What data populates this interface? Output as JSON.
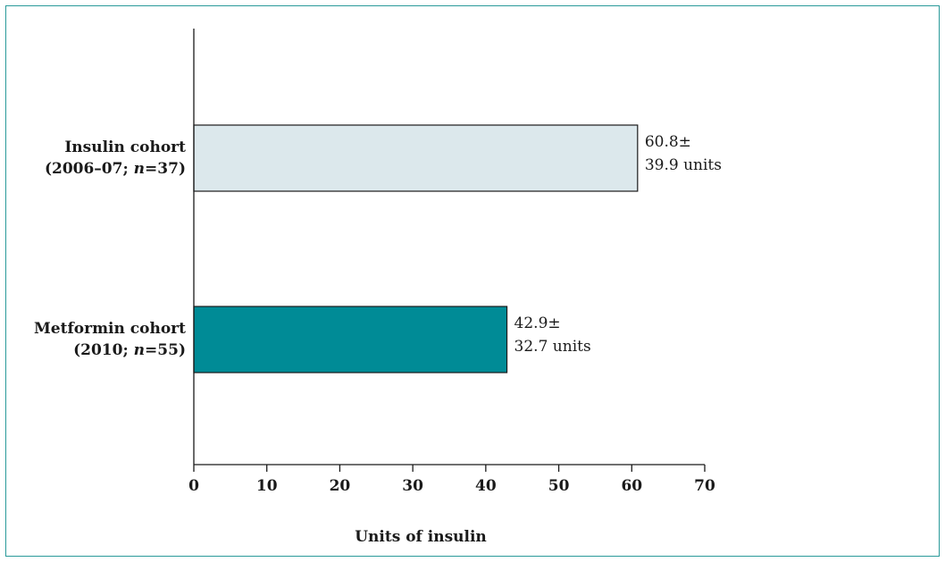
{
  "chart_data": {
    "type": "bar",
    "orientation": "horizontal",
    "categories": [
      {
        "line1": "Insulin cohort",
        "line2_pre": "(2006–07; ",
        "line2_n": "n",
        "line2_post": "=37)"
      },
      {
        "line1": "Metformin cohort",
        "line2_pre": "(2010; ",
        "line2_n": "n",
        "line2_post": "=55)"
      }
    ],
    "values": [
      60.8,
      42.9
    ],
    "data_labels": [
      {
        "line1": "60.8±",
        "line2": "39.9 units"
      },
      {
        "line1": "42.9±",
        "line2": "32.7 units"
      }
    ],
    "bar_colors": [
      "#dce8ec",
      "#008b96"
    ],
    "bar_outline": "#1a1a1a",
    "frame_color": "#2a9a9a",
    "xlabel": "Units of insulin",
    "xlim": [
      0,
      70
    ],
    "xticks": [
      "0",
      "10",
      "20",
      "30",
      "40",
      "50",
      "60",
      "70"
    ],
    "grid": false,
    "legend": "none"
  }
}
